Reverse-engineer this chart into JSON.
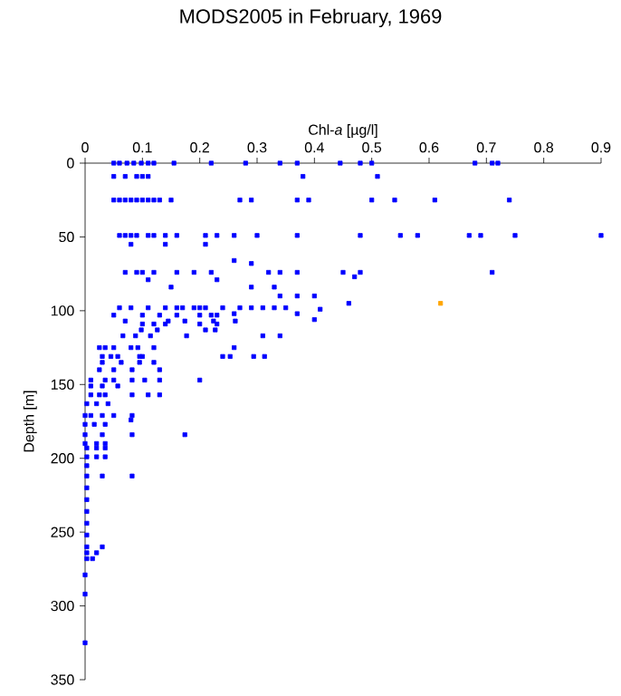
{
  "chart_data": {
    "type": "scatter",
    "title": "MODS2005 in February, 1969",
    "xlabel": "Chl-*a* [µg/l]",
    "ylabel": "Depth [m]",
    "xlim": [
      0,
      0.9
    ],
    "xticks": [
      0,
      0.1,
      0.2,
      0.3,
      0.4,
      0.5,
      0.6,
      0.7,
      0.8,
      0.9
    ],
    "ylim": [
      350,
      0
    ],
    "yticks": [
      0,
      50,
      100,
      150,
      200,
      250,
      300,
      350
    ],
    "marker": "square",
    "grid": false,
    "series": [
      {
        "color": "#0000ff",
        "x": [
          0.05,
          0.06,
          0.073,
          0.085,
          0.098,
          0.11,
          0.12,
          0.155,
          0.22,
          0.28,
          0.34,
          0.37,
          0.445,
          0.48,
          0.5,
          0.68,
          0.71,
          0.72,
          0.05,
          0.07,
          0.09,
          0.1,
          0.11,
          0.38,
          0.51,
          0.05,
          0.06,
          0.07,
          0.08,
          0.09,
          0.1,
          0.11,
          0.12,
          0.13,
          0.15,
          0.27,
          0.29,
          0.37,
          0.39,
          0.5,
          0.54,
          0.61,
          0.74,
          0.06,
          0.07,
          0.08,
          0.09,
          0.11,
          0.12,
          0.14,
          0.16,
          0.21,
          0.23,
          0.26,
          0.3,
          0.37,
          0.48,
          0.55,
          0.58,
          0.67,
          0.69,
          0.75,
          0.9,
          0.08,
          0.14,
          0.21,
          0.07,
          0.09,
          0.1,
          0.12,
          0.16,
          0.19,
          0.22,
          0.32,
          0.34,
          0.37,
          0.45,
          0.48,
          0.71,
          0.26,
          0.29,
          0.47,
          0.11,
          0.23,
          0.15,
          0.29,
          0.33,
          0.34,
          0.37,
          0.4,
          0.46,
          0.41,
          0.4,
          0.06,
          0.08,
          0.11,
          0.14,
          0.16,
          0.17,
          0.19,
          0.2,
          0.21,
          0.24,
          0.27,
          0.29,
          0.31,
          0.33,
          0.35,
          0.05,
          0.1,
          0.13,
          0.16,
          0.2,
          0.22,
          0.23,
          0.37,
          0.26,
          0.1,
          0.12,
          0.14,
          0.2,
          0.23,
          0.07,
          0.145,
          0.174,
          0.224,
          0.262,
          0.098,
          0.126,
          0.21,
          0.227,
          0.066,
          0.088,
          0.114,
          0.177,
          0.31,
          0.34,
          0.025,
          0.035,
          0.05,
          0.08,
          0.092,
          0.12,
          0.26,
          0.03,
          0.045,
          0.057,
          0.095,
          0.1,
          0.24,
          0.253,
          0.294,
          0.313,
          0.03,
          0.063,
          0.095,
          0.12,
          0.025,
          0.05,
          0.082,
          0.13,
          0.01,
          0.035,
          0.05,
          0.082,
          0.104,
          0.13,
          0.2,
          0.01,
          0.03,
          0.057,
          0.01,
          0.025,
          0.035,
          0.082,
          0.11,
          0.13,
          0.003,
          0.02,
          0.04,
          0.0,
          0.01,
          0.03,
          0.05,
          0.082,
          0.08,
          0.0,
          0.016,
          0.035,
          0.0,
          0.03,
          0.082,
          0.174,
          0.0,
          0.02,
          0.035,
          0.003,
          0.02,
          0.035,
          0.003,
          0.02,
          0.035,
          0.003,
          0.003,
          0.03,
          0.082,
          0.003,
          0.003,
          0.003,
          0.003,
          0.003,
          0.003,
          0.03,
          0.003,
          0.02,
          0.003,
          0.013,
          0.0,
          0.0,
          0.0
        ],
        "values": [
          0,
          0,
          0,
          0,
          0,
          0,
          0,
          0,
          0,
          0,
          0,
          0,
          0,
          0,
          0,
          0,
          0,
          0,
          9,
          9,
          9,
          9,
          9,
          9,
          9,
          25,
          25,
          25,
          25,
          25,
          25,
          25,
          25,
          25,
          25,
          25,
          25,
          25,
          25,
          25,
          25,
          25,
          25,
          49,
          49,
          49,
          49,
          49,
          49,
          49,
          49,
          49,
          49,
          49,
          49,
          49,
          49,
          49,
          49,
          49,
          49,
          49,
          49,
          55,
          55,
          55,
          74,
          74,
          74,
          74,
          74,
          74,
          74,
          74,
          74,
          74,
          74,
          74,
          74,
          66,
          68,
          77,
          79,
          79,
          84,
          84,
          84,
          90,
          90,
          90,
          95,
          99,
          106,
          98,
          98,
          98,
          98,
          98,
          98,
          98,
          98,
          98,
          98,
          98,
          98,
          98,
          98,
          98,
          103,
          103,
          103,
          103,
          103,
          103,
          103,
          102,
          102,
          109,
          109,
          109,
          109,
          109,
          107,
          107,
          107,
          107,
          107,
          113,
          113,
          113,
          113,
          117,
          117,
          117,
          117,
          117,
          117,
          125,
          125,
          125,
          125,
          125,
          125,
          125,
          131,
          131,
          131,
          131,
          131,
          131,
          131,
          131,
          131,
          135,
          135,
          135,
          135,
          140,
          140,
          140,
          140,
          147,
          147,
          147,
          147,
          147,
          147,
          147,
          151,
          151,
          151,
          157,
          157,
          157,
          157,
          157,
          157,
          163,
          163,
          163,
          171,
          171,
          171,
          171,
          171,
          174,
          177,
          177,
          177,
          184,
          184,
          184,
          184,
          190,
          190,
          190,
          193,
          193,
          193,
          199,
          199,
          199,
          205,
          212,
          212,
          212,
          220,
          228,
          236,
          244,
          252,
          260,
          260,
          264,
          264,
          268,
          268,
          279,
          292,
          325
        ]
      },
      {
        "color": "#ffa500",
        "x": [
          0.62
        ],
        "values": [
          95
        ]
      }
    ]
  }
}
